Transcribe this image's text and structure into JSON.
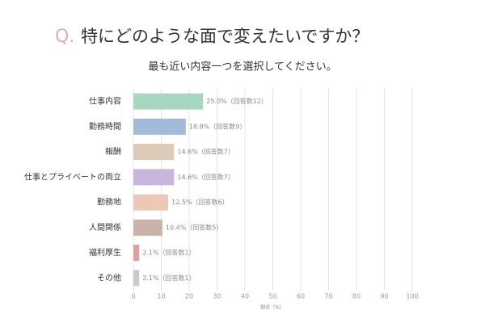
{
  "chart_data": {
    "type": "bar",
    "orientation": "horizontal",
    "question_label": "Q.",
    "title": "特にどのような面で変えたいですか？",
    "subtitle": "最も近い内容一つを選択してください。",
    "categories": [
      "仕事内容",
      "勤務時間",
      "報酬",
      "仕事とプライベートの両立",
      "勤務地",
      "人間関係",
      "福利厚生",
      "その他"
    ],
    "values": [
      25.0,
      18.8,
      14.6,
      14.6,
      12.5,
      10.4,
      2.1,
      2.1
    ],
    "value_labels": [
      "25.0%（回答数12）",
      "18.8%（回答数9）",
      "14.6%（回答数7）",
      "14.6%（回答数7）",
      "12.5%（回答数6）",
      "10.4%（回答数5）",
      "2.1%（回答数1）",
      "2.1%（回答数1）"
    ],
    "colors": [
      "#a9d6c1",
      "#a2bbda",
      "#dccbb6",
      "#c9b6dd",
      "#edc8b6",
      "#c9b2aa",
      "#dd9f9f",
      "#cacaca"
    ],
    "xlabel": "割合（%）",
    "xlim": [
      0,
      100
    ],
    "xticks": [
      0,
      10,
      20,
      30,
      40,
      50,
      60,
      70,
      80,
      90,
      100
    ],
    "grid": true
  }
}
